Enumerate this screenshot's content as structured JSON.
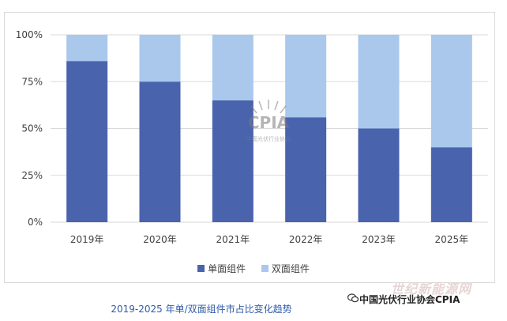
{
  "chart_data": {
    "type": "bar",
    "stacked": true,
    "categories": [
      "2019年",
      "2020年",
      "2021年",
      "2022年",
      "2023年",
      "2025年"
    ],
    "series": [
      {
        "name": "单面组件",
        "values": [
          86,
          75,
          65,
          56,
          50,
          40
        ],
        "color": "#4a63ad"
      },
      {
        "name": "双面组件",
        "values": [
          14,
          25,
          35,
          44,
          50,
          60
        ],
        "color": "#a9c8ec"
      }
    ],
    "yticks": [
      "0%",
      "25%",
      "50%",
      "75%",
      "100%"
    ],
    "ylim": [
      0,
      100
    ],
    "grid": true,
    "legend_position": "bottom"
  },
  "caption": "2019-2025 年单/双面组件市占比变化趋势",
  "watermark": {
    "logo_text": "CPIA",
    "logo_subtext": "中国光伏行业协会",
    "source": "中国光伏行业协会CPIA",
    "site": "世纪新能源网"
  }
}
